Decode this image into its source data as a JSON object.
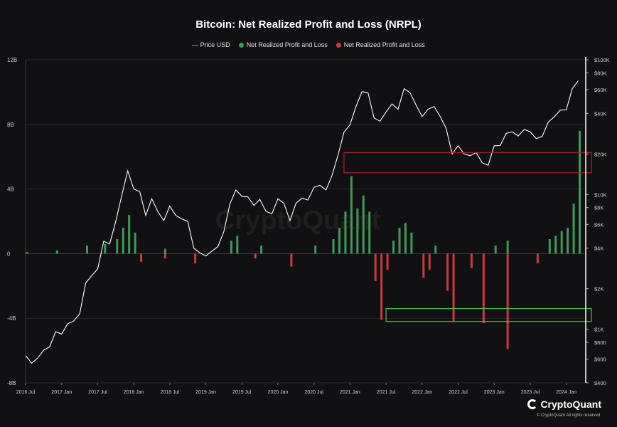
{
  "chart_data": {
    "type": "bar",
    "title": "Bitcoin: Net Realized Profit and Loss (NRPL)",
    "legend": {
      "placement": "top-center",
      "price": "— Price USD",
      "profit": "Net Realized Profit and Loss",
      "loss": "Net Realized Profit and Loss"
    },
    "colors": {
      "background": "#111113",
      "price": "#ffffff",
      "profit": "#3f9a59",
      "loss": "#d0393c",
      "loss_box": "#b01f28",
      "profit_box": "#3fbf5a",
      "grid": "#2a2a2e"
    },
    "y_left": {
      "ticks": [
        "12B",
        "8B",
        "4B",
        "0",
        "-4B",
        "-8B"
      ],
      "tick_values": [
        12,
        8,
        4,
        0,
        -4,
        -8
      ],
      "ylim": [
        -8,
        12
      ],
      "unit": "B"
    },
    "y_right": {
      "scale": "log",
      "ticks": [
        "$100K",
        "$80K",
        "$60K",
        "$40K",
        "$20K",
        "$10K",
        "$8K",
        "$6K",
        "$4K",
        "$2K",
        "$1K",
        "$800",
        "$600",
        "$400"
      ],
      "tick_values": [
        100000,
        80000,
        60000,
        40000,
        20000,
        10000,
        8000,
        6000,
        4000,
        2000,
        1000,
        800,
        600,
        400
      ],
      "ylim": [
        400,
        100000
      ]
    },
    "x": {
      "ticks": [
        "2016 Jul",
        "2017 Jan",
        "2017 Jul",
        "2018 Jan",
        "2018 Jul",
        "2019 Jan",
        "2019 Jul",
        "2020 Jan",
        "2020 Jul",
        "2021 Jan",
        "2021 Jul",
        "2022 Jan",
        "2022 Jul",
        "2023 Jan",
        "2023 Jul",
        "2024 Jan"
      ],
      "tick_dates": [
        "2016-07",
        "2017-01",
        "2017-07",
        "2018-01",
        "2018-07",
        "2019-01",
        "2019-07",
        "2020-01",
        "2020-07",
        "2021-01",
        "2021-07",
        "2022-01",
        "2022-07",
        "2023-01",
        "2023-07",
        "2024-01"
      ],
      "xlim": [
        "2016-07",
        "2024-04"
      ]
    },
    "price_series": {
      "name": "Price USD",
      "dates": [
        "2016-07",
        "2016-08",
        "2016-09",
        "2016-10",
        "2016-11",
        "2016-12",
        "2017-01",
        "2017-02",
        "2017-03",
        "2017-04",
        "2017-05",
        "2017-06",
        "2017-07",
        "2017-08",
        "2017-09",
        "2017-10",
        "2017-11",
        "2017-12",
        "2018-01",
        "2018-02",
        "2018-03",
        "2018-04",
        "2018-05",
        "2018-06",
        "2018-07",
        "2018-08",
        "2018-09",
        "2018-10",
        "2018-11",
        "2018-12",
        "2019-01",
        "2019-02",
        "2019-03",
        "2019-04",
        "2019-05",
        "2019-06",
        "2019-07",
        "2019-08",
        "2019-09",
        "2019-10",
        "2019-11",
        "2019-12",
        "2020-01",
        "2020-02",
        "2020-03",
        "2020-04",
        "2020-05",
        "2020-06",
        "2020-07",
        "2020-08",
        "2020-09",
        "2020-10",
        "2020-11",
        "2020-12",
        "2021-01",
        "2021-02",
        "2021-03",
        "2021-04",
        "2021-05",
        "2021-06",
        "2021-07",
        "2021-08",
        "2021-09",
        "2021-10",
        "2021-11",
        "2021-12",
        "2022-01",
        "2022-02",
        "2022-03",
        "2022-04",
        "2022-05",
        "2022-06",
        "2022-07",
        "2022-08",
        "2022-09",
        "2022-10",
        "2022-11",
        "2022-12",
        "2023-01",
        "2023-02",
        "2023-03",
        "2023-04",
        "2023-05",
        "2023-06",
        "2023-07",
        "2023-08",
        "2023-09",
        "2023-10",
        "2023-11",
        "2023-12",
        "2024-01",
        "2024-02",
        "2024-03"
      ],
      "values": [
        640,
        560,
        610,
        700,
        740,
        960,
        920,
        1100,
        1150,
        1300,
        2200,
        2500,
        2800,
        4500,
        4300,
        6300,
        9800,
        15000,
        11000,
        10500,
        7000,
        9300,
        7500,
        6400,
        8200,
        7000,
        6600,
        6300,
        4000,
        3700,
        3500,
        3800,
        4100,
        5300,
        8500,
        10800,
        9700,
        9600,
        8300,
        9200,
        7500,
        7200,
        9300,
        8600,
        6400,
        8600,
        9400,
        9100,
        11300,
        11700,
        10800,
        13800,
        19600,
        29000,
        33000,
        45000,
        58000,
        57000,
        37000,
        35000,
        41000,
        47000,
        43000,
        61000,
        57000,
        46000,
        38000,
        43000,
        45000,
        38000,
        31000,
        20000,
        23000,
        20000,
        19400,
        20500,
        17200,
        16500,
        23000,
        23100,
        28400,
        29200,
        27200,
        30400,
        29200,
        26000,
        27000,
        34500,
        37700,
        42300,
        42500,
        61000,
        70000
      ]
    },
    "nrpl_series": [
      {
        "name": "Net Realized Profit and Loss (profit)",
        "dates": [
          "2016-07",
          "2016-12",
          "2017-05",
          "2017-08",
          "2017-10",
          "2017-11",
          "2017-12",
          "2018-01",
          "2018-06",
          "2019-05",
          "2019-06",
          "2019-10",
          "2020-07",
          "2020-10",
          "2020-11",
          "2020-12",
          "2021-01",
          "2021-02",
          "2021-03",
          "2021-04",
          "2021-08",
          "2021-09",
          "2021-10",
          "2021-11",
          "2022-03",
          "2023-01",
          "2023-03",
          "2023-10",
          "2023-11",
          "2023-12",
          "2024-01",
          "2024-02",
          "2024-03"
        ],
        "values": [
          0.1,
          0.2,
          0.5,
          0.6,
          0.9,
          1.6,
          2.4,
          1.3,
          0.3,
          0.8,
          1.1,
          0.5,
          0.5,
          0.9,
          1.6,
          2.6,
          4.8,
          2.8,
          3.6,
          2.6,
          0.8,
          1.6,
          1.9,
          1.3,
          0.5,
          0.5,
          0.8,
          0.9,
          1.1,
          1.4,
          1.6,
          3.1,
          7.6
        ]
      },
      {
        "name": "Net Realized Profit and Loss (loss)",
        "dates": [
          "2018-02",
          "2018-06",
          "2018-11",
          "2019-09",
          "2020-03",
          "2021-05",
          "2021-06",
          "2021-07",
          "2022-01",
          "2022-02",
          "2022-05",
          "2022-06",
          "2022-09",
          "2022-11",
          "2023-03",
          "2023-08"
        ],
        "values": [
          -0.5,
          -0.3,
          -0.6,
          -0.3,
          -0.8,
          -1.7,
          -4.1,
          -1.0,
          -1.5,
          -1.0,
          -2.3,
          -4.2,
          -0.9,
          -4.3,
          -5.9,
          -0.6
        ]
      }
    ],
    "annotations": [
      {
        "kind": "rectangle",
        "series": "price",
        "from": "2020-12",
        "to": "2024-04",
        "y_from": 14500,
        "y_to": 20500
      },
      {
        "kind": "rectangle",
        "series": "nrpl",
        "from": "2021-07",
        "to": "2024-04",
        "y_from": -4.2,
        "y_to": -3.4
      }
    ],
    "grid": true,
    "watermark": "CryptoQuant"
  },
  "branding": {
    "name": "CryptoQuant",
    "copyright": "© CryptoQuant All rights reserved."
  }
}
